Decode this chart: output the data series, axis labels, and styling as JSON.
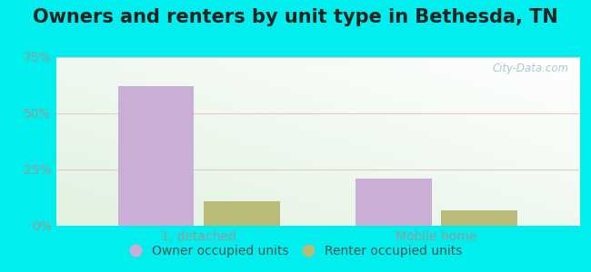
{
  "title": "Owners and renters by unit type in Bethesda, TN",
  "categories": [
    "1, detached",
    "Mobile home"
  ],
  "owner_values": [
    62,
    21
  ],
  "renter_values": [
    11,
    7
  ],
  "owner_color": "#c9aed6",
  "renter_color": "#b8bc78",
  "ylim": [
    0,
    75
  ],
  "yticks": [
    0,
    25,
    50,
    75
  ],
  "yticklabels": [
    "0%",
    "25%",
    "50%",
    "75%"
  ],
  "bar_width": 0.32,
  "outer_color": "#00eeee",
  "watermark": "City-Data.com",
  "legend_owner": "Owner occupied units",
  "legend_renter": "Renter occupied units",
  "title_fontsize": 15,
  "tick_fontsize": 10,
  "legend_fontsize": 10,
  "bg_colors": [
    "#d8eed8",
    "#f5fdf5",
    "#ffffff",
    "#ffffff"
  ],
  "grid_color": "#dddddd",
  "tick_color": "#999999"
}
